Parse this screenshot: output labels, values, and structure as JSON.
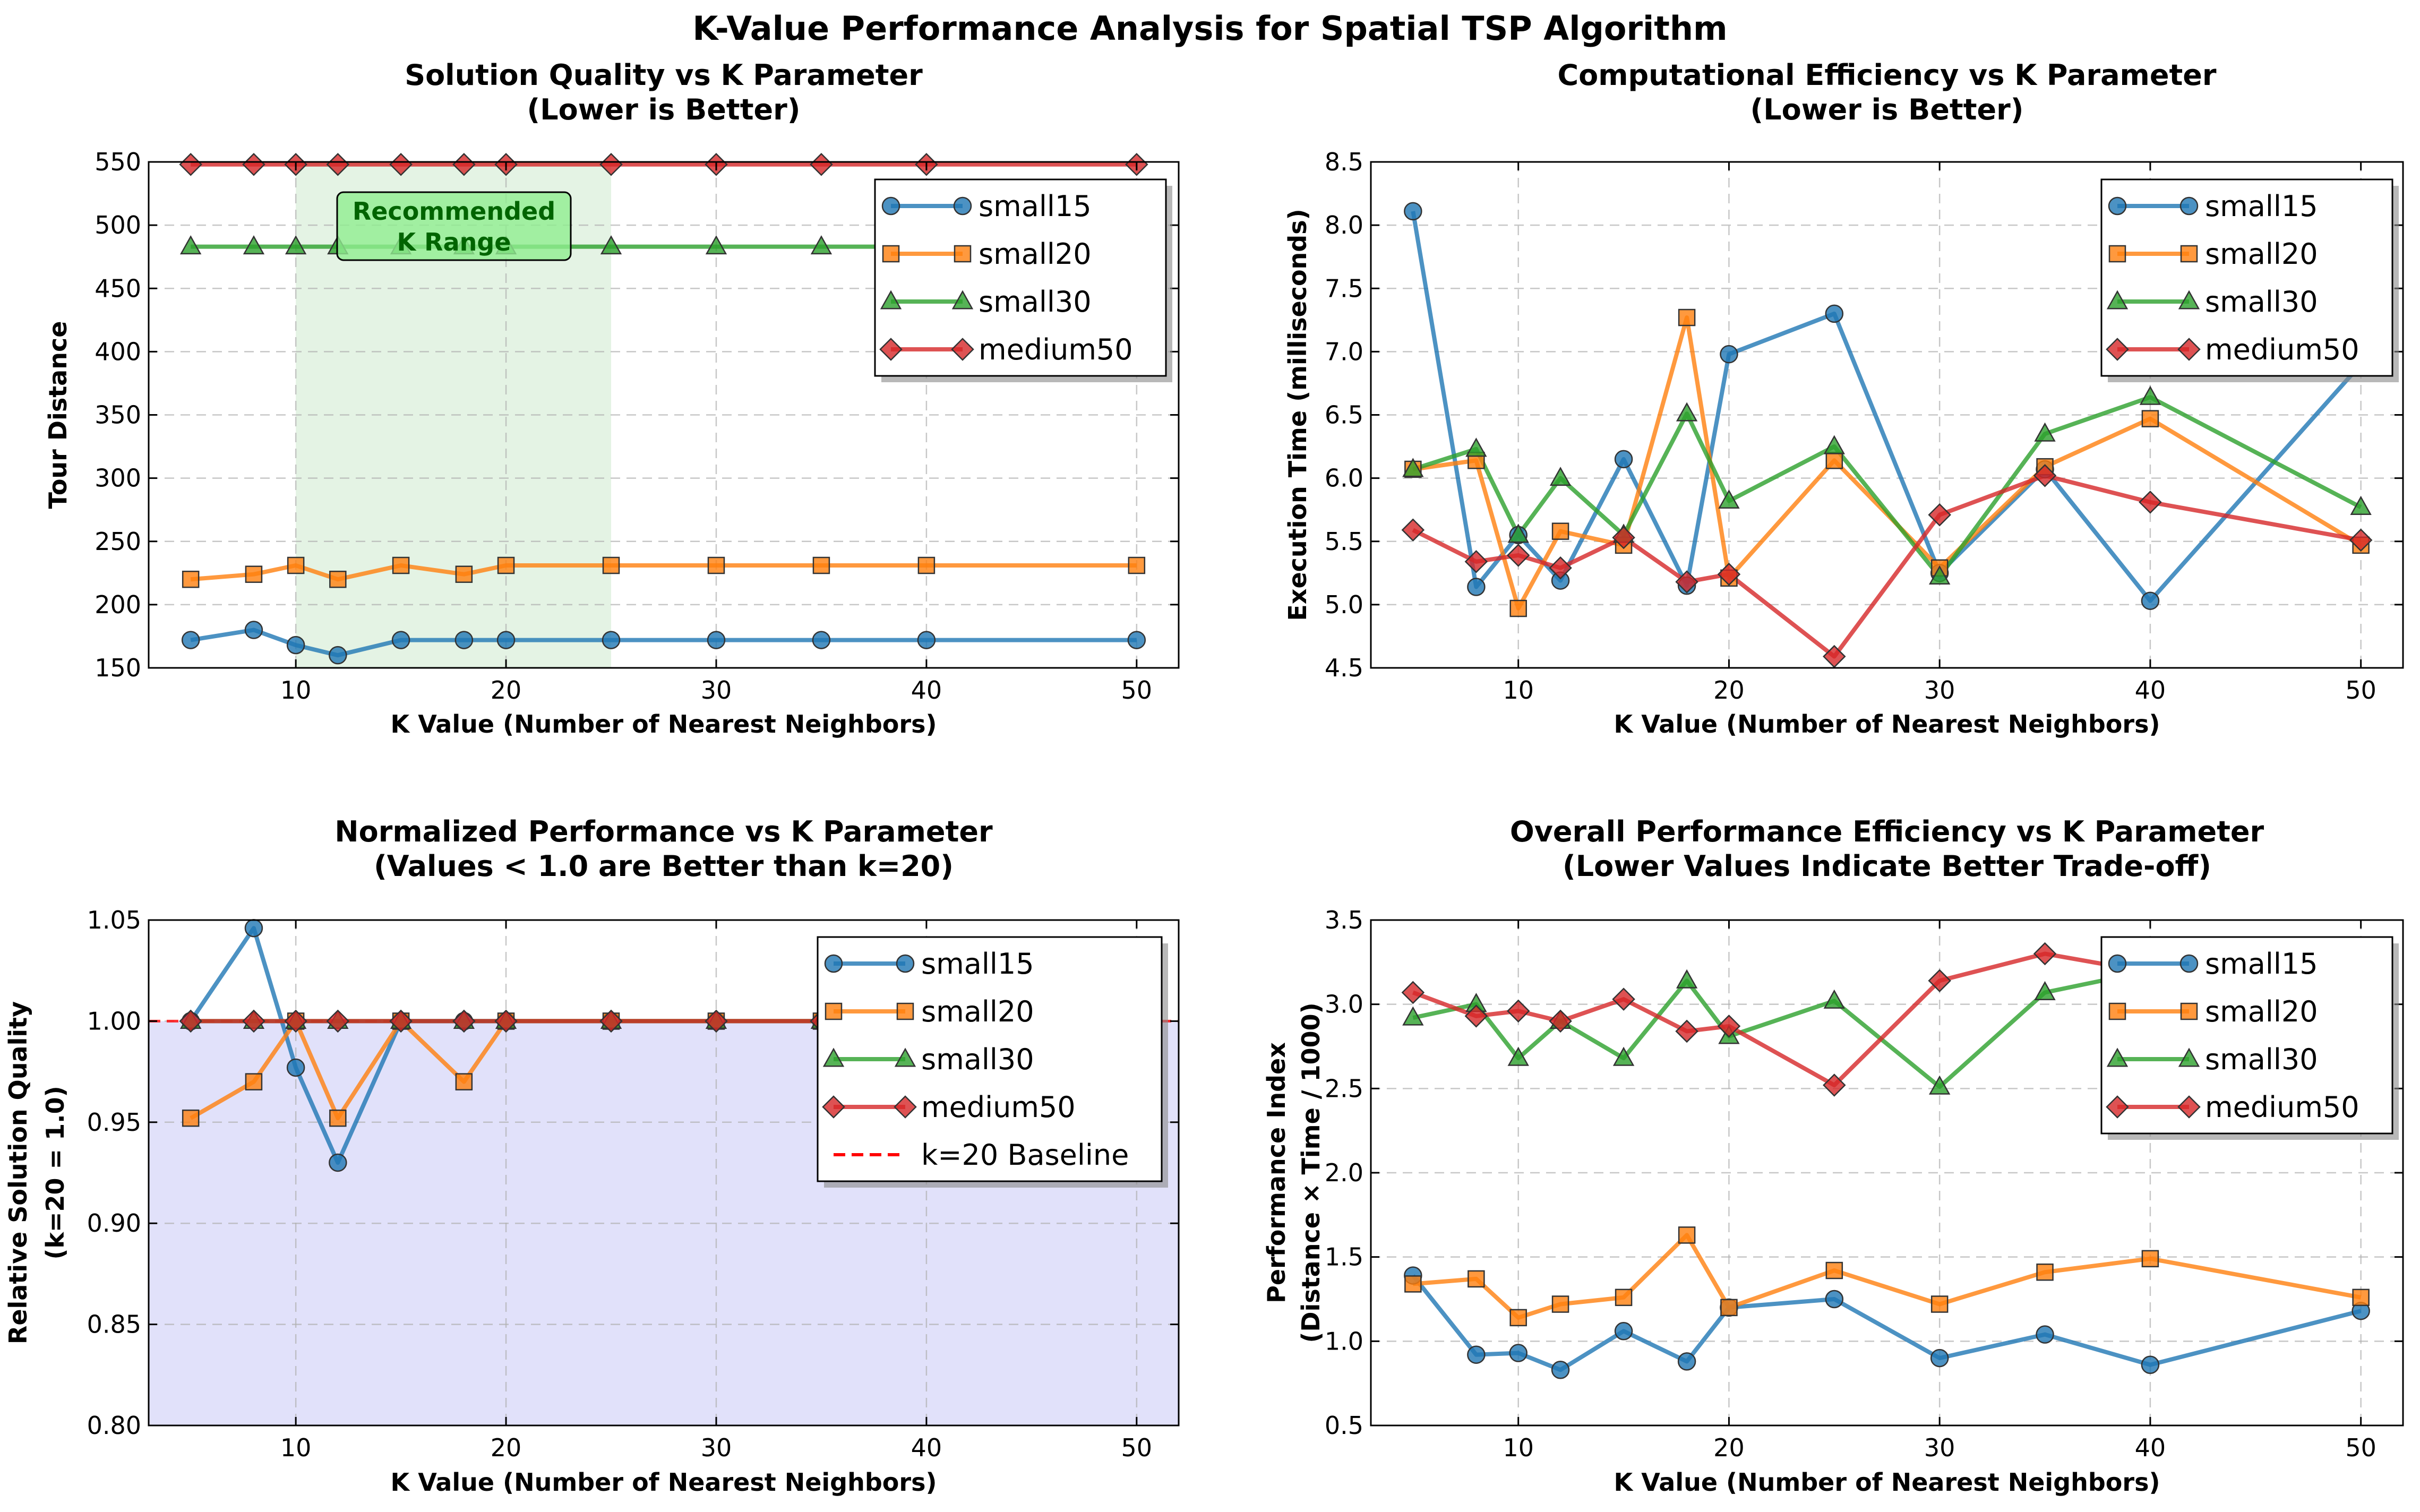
{
  "figure": {
    "title": "K-Value Performance Analysis for Spatial TSP Algorithm"
  },
  "colors": {
    "small15": "#1f77b4",
    "small20": "#ff7f0e",
    "small30": "#2ca02c",
    "medium50": "#d62728",
    "baseline": "#ff0000",
    "recommended_region": "#2ca02c",
    "better_region": "#c8c8f5",
    "grid": "#b0b0b0"
  },
  "chart_data": [
    {
      "id": "quality",
      "type": "line",
      "title": [
        "Solution Quality vs K Parameter",
        "(Lower is Better)"
      ],
      "xlabel": "K Value (Number of Nearest Neighbors)",
      "ylabel": [
        "Tour Distance"
      ],
      "xlim": [
        3,
        52
      ],
      "ylim": [
        150,
        550
      ],
      "xticks": [
        10,
        20,
        30,
        40,
        50
      ],
      "yticks": [
        150,
        200,
        250,
        300,
        350,
        400,
        450,
        500,
        550
      ],
      "ytick_labels": [
        "150",
        "200",
        "250",
        "300",
        "350",
        "400",
        "450",
        "500",
        "550"
      ],
      "grid": true,
      "legend_position": "top-right",
      "x": [
        5,
        8,
        10,
        12,
        15,
        18,
        20,
        25,
        30,
        35,
        40,
        50
      ],
      "series": [
        {
          "name": "small15",
          "marker": "circle",
          "values": [
            172,
            180,
            168,
            160,
            172,
            172,
            172,
            172,
            172,
            172,
            172,
            172
          ]
        },
        {
          "name": "small20",
          "marker": "square",
          "values": [
            220,
            224,
            231,
            220,
            231,
            224,
            231,
            231,
            231,
            231,
            231,
            231
          ]
        },
        {
          "name": "small30",
          "marker": "triangle",
          "values": [
            483,
            483,
            483,
            483,
            483,
            483,
            483,
            483,
            483,
            483,
            483,
            483
          ]
        },
        {
          "name": "medium50",
          "marker": "diamond",
          "values": [
            548,
            548,
            548,
            548,
            548,
            548,
            548,
            548,
            548,
            548,
            548,
            548
          ]
        }
      ],
      "annotations": [
        {
          "type": "shaded_range",
          "x_range": [
            10,
            25
          ]
        },
        {
          "type": "label_box",
          "lines": [
            "Recommended",
            "K Range"
          ]
        }
      ]
    },
    {
      "id": "time",
      "type": "line",
      "title": [
        "Computational Efficiency vs K Parameter",
        "(Lower is Better)"
      ],
      "xlabel": "K Value (Number of Nearest Neighbors)",
      "ylabel": [
        "Execution Time (milliseconds)"
      ],
      "xlim": [
        3,
        52
      ],
      "ylim": [
        4.5,
        8.5
      ],
      "xticks": [
        10,
        20,
        30,
        40,
        50
      ],
      "yticks": [
        4.5,
        5.0,
        5.5,
        6.0,
        6.5,
        7.0,
        7.5,
        8.0,
        8.5
      ],
      "ytick_labels": [
        "4.5",
        "5.0",
        "5.5",
        "6.0",
        "6.5",
        "7.0",
        "7.5",
        "8.0",
        "8.5"
      ],
      "grid": true,
      "legend_position": "top-right",
      "x": [
        5,
        8,
        10,
        12,
        15,
        18,
        20,
        25,
        30,
        35,
        40,
        50
      ],
      "series": [
        {
          "name": "small15",
          "marker": "circle",
          "values": [
            8.11,
            5.14,
            5.55,
            5.19,
            6.15,
            5.15,
            6.98,
            7.3,
            5.25,
            6.07,
            5.03,
            6.9
          ]
        },
        {
          "name": "small20",
          "marker": "square",
          "values": [
            6.07,
            6.14,
            4.97,
            5.58,
            5.47,
            7.27,
            5.21,
            6.14,
            5.29,
            6.09,
            6.47,
            5.47
          ]
        },
        {
          "name": "small30",
          "marker": "triangle",
          "values": [
            6.07,
            6.23,
            5.55,
            6.0,
            5.55,
            6.51,
            5.82,
            6.25,
            5.22,
            6.35,
            6.64,
            5.77
          ]
        },
        {
          "name": "medium50",
          "marker": "diamond",
          "values": [
            5.59,
            5.34,
            5.39,
            5.29,
            5.53,
            5.18,
            5.24,
            4.59,
            5.71,
            6.02,
            5.81,
            5.51
          ]
        }
      ]
    },
    {
      "id": "normalized",
      "type": "line",
      "title": [
        "Normalized Performance vs K Parameter",
        "(Values < 1.0 are Better than k=20)"
      ],
      "xlabel": "K Value (Number of Nearest Neighbors)",
      "ylabel": [
        "Relative Solution Quality",
        "(k=20 = 1.0)"
      ],
      "xlim": [
        3,
        52
      ],
      "ylim": [
        0.8,
        1.05
      ],
      "xticks": [
        10,
        20,
        30,
        40,
        50
      ],
      "yticks": [
        0.8,
        0.85,
        0.9,
        0.95,
        1.0,
        1.05
      ],
      "ytick_labels": [
        "0.80",
        "0.85",
        "0.90",
        "0.95",
        "1.00",
        "1.05"
      ],
      "grid": true,
      "legend_position": "top-right",
      "x": [
        5,
        8,
        10,
        12,
        15,
        18,
        20,
        25,
        30,
        35,
        40,
        50
      ],
      "series": [
        {
          "name": "small15",
          "marker": "circle",
          "values": [
            1.0,
            1.046,
            0.977,
            0.93,
            1.0,
            1.0,
            1.0,
            1.0,
            1.0,
            1.0,
            1.0,
            1.0
          ]
        },
        {
          "name": "small20",
          "marker": "square",
          "values": [
            0.952,
            0.97,
            1.0,
            0.952,
            1.0,
            0.97,
            1.0,
            1.0,
            1.0,
            1.0,
            1.0,
            1.0
          ]
        },
        {
          "name": "small30",
          "marker": "triangle",
          "values": [
            1.0,
            1.0,
            1.0,
            1.0,
            1.0,
            1.0,
            1.0,
            1.0,
            1.0,
            1.0,
            1.0,
            1.0
          ]
        },
        {
          "name": "medium50",
          "marker": "diamond",
          "values": [
            1.0,
            1.0,
            1.0,
            1.0,
            1.0,
            1.0,
            1.0,
            1.0,
            1.0,
            1.0,
            1.0,
            1.0
          ]
        }
      ],
      "baseline": {
        "name": "k=20 Baseline",
        "y": 1.0
      },
      "shaded_below": 1.0
    },
    {
      "id": "efficiency",
      "type": "line",
      "title": [
        "Overall Performance Efficiency vs K Parameter",
        "(Lower Values Indicate Better Trade-off)"
      ],
      "xlabel": "K Value (Number of Nearest Neighbors)",
      "ylabel": [
        "Performance Index",
        "(Distance × Time / 1000)"
      ],
      "xlim": [
        3,
        52
      ],
      "ylim": [
        0.5,
        3.5
      ],
      "xticks": [
        10,
        20,
        30,
        40,
        50
      ],
      "yticks": [
        0.5,
        1.0,
        1.5,
        2.0,
        2.5,
        3.0,
        3.5
      ],
      "ytick_labels": [
        "0.5",
        "1.0",
        "1.5",
        "2.0",
        "2.5",
        "3.0",
        "3.5"
      ],
      "grid": true,
      "legend_position": "top-right",
      "x": [
        5,
        8,
        10,
        12,
        15,
        18,
        20,
        25,
        30,
        35,
        40,
        50
      ],
      "series": [
        {
          "name": "small15",
          "marker": "circle",
          "values": [
            1.39,
            0.92,
            0.93,
            0.83,
            1.06,
            0.88,
            1.2,
            1.25,
            0.9,
            1.04,
            0.86,
            1.18
          ]
        },
        {
          "name": "small20",
          "marker": "square",
          "values": [
            1.34,
            1.37,
            1.14,
            1.22,
            1.26,
            1.63,
            1.2,
            1.42,
            1.22,
            1.41,
            1.49,
            1.26
          ]
        },
        {
          "name": "small30",
          "marker": "triangle",
          "values": [
            2.92,
            3.0,
            2.68,
            2.9,
            2.68,
            3.14,
            2.81,
            3.02,
            2.51,
            3.07,
            3.2,
            2.79
          ]
        },
        {
          "name": "medium50",
          "marker": "diamond",
          "values": [
            3.07,
            2.93,
            2.96,
            2.9,
            3.03,
            2.84,
            2.87,
            2.52,
            3.14,
            3.3,
            3.19,
            3.02
          ]
        }
      ]
    }
  ]
}
